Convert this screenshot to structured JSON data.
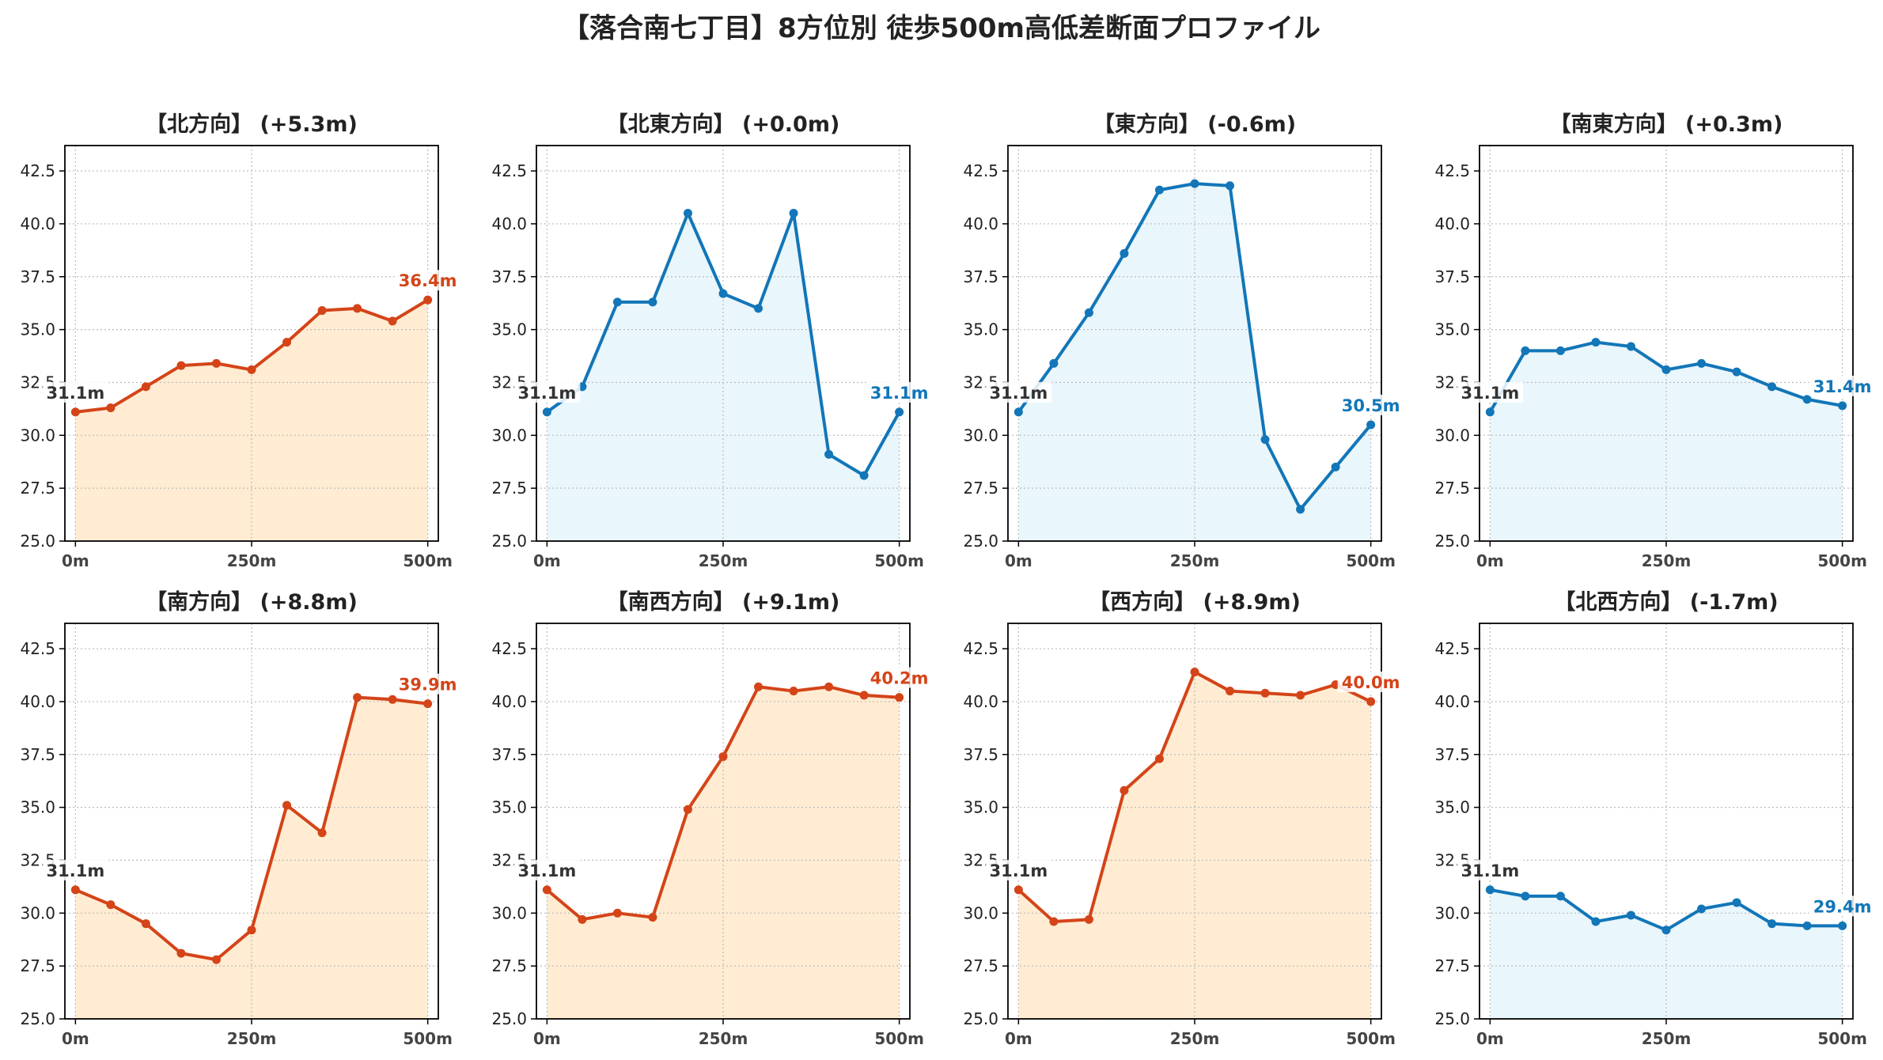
{
  "suptitle": "【落合南七丁目】8方位別 徒歩500m高低差断面プロファイル",
  "colors": {
    "up_line": "#d44418",
    "up_fill": "#ffecd2",
    "down_line": "#1276b8",
    "down_fill": "#e9f6fb",
    "start_label": "#333333"
  },
  "axes_common": {
    "ylim": [
      25.0,
      43.7
    ],
    "xlim": [
      -15,
      515
    ],
    "yticks": [
      "25.0",
      "27.5",
      "30.0",
      "32.5",
      "35.0",
      "37.5",
      "40.0",
      "42.5"
    ],
    "xticks": [
      "0m",
      "250m",
      "500m"
    ],
    "grid": true
  },
  "chart_data": [
    {
      "type": "area",
      "title": "【北方向】 (+5.3m)",
      "trend": "up",
      "x": [
        0,
        50,
        100,
        150,
        200,
        250,
        300,
        350,
        400,
        450,
        500
      ],
      "y": [
        31.1,
        31.3,
        32.3,
        33.3,
        33.4,
        33.1,
        34.4,
        35.9,
        36.0,
        35.4,
        36.4
      ],
      "start_label": "31.1m",
      "end_label": "36.4m"
    },
    {
      "type": "area",
      "title": "【北東方向】 (+0.0m)",
      "trend": "down",
      "x": [
        0,
        50,
        100,
        150,
        200,
        250,
        300,
        350,
        400,
        450,
        500
      ],
      "y": [
        31.1,
        32.3,
        36.3,
        36.3,
        40.5,
        36.7,
        36.0,
        40.5,
        29.1,
        28.1,
        31.1
      ],
      "start_label": "31.1m",
      "end_label": "31.1m"
    },
    {
      "type": "area",
      "title": "【東方向】 (-0.6m)",
      "trend": "down",
      "x": [
        0,
        50,
        100,
        150,
        200,
        250,
        300,
        350,
        400,
        450,
        500
      ],
      "y": [
        31.1,
        33.4,
        35.8,
        38.6,
        41.6,
        41.9,
        41.8,
        29.8,
        26.5,
        28.5,
        30.5
      ],
      "start_label": "31.1m",
      "end_label": "30.5m"
    },
    {
      "type": "area",
      "title": "【南東方向】 (+0.3m)",
      "trend": "down",
      "x": [
        0,
        50,
        100,
        150,
        200,
        250,
        300,
        350,
        400,
        450,
        500
      ],
      "y": [
        31.1,
        34.0,
        34.0,
        34.4,
        34.2,
        33.1,
        33.4,
        33.0,
        32.3,
        31.7,
        31.4
      ],
      "start_label": "31.1m",
      "end_label": "31.4m"
    },
    {
      "type": "area",
      "title": "【南方向】 (+8.8m)",
      "trend": "up",
      "x": [
        0,
        50,
        100,
        150,
        200,
        250,
        300,
        350,
        400,
        450,
        500
      ],
      "y": [
        31.1,
        30.4,
        29.5,
        28.1,
        27.8,
        29.2,
        35.1,
        33.8,
        40.2,
        40.1,
        39.9
      ],
      "start_label": "31.1m",
      "end_label": "39.9m"
    },
    {
      "type": "area",
      "title": "【南西方向】 (+9.1m)",
      "trend": "up",
      "x": [
        0,
        50,
        100,
        150,
        200,
        250,
        300,
        350,
        400,
        450,
        500
      ],
      "y": [
        31.1,
        29.7,
        30.0,
        29.8,
        34.9,
        37.4,
        40.7,
        40.5,
        40.7,
        40.3,
        40.2
      ],
      "start_label": "31.1m",
      "end_label": "40.2m"
    },
    {
      "type": "area",
      "title": "【西方向】 (+8.9m)",
      "trend": "up",
      "x": [
        0,
        50,
        100,
        150,
        200,
        250,
        300,
        350,
        400,
        450,
        500
      ],
      "y": [
        31.1,
        29.6,
        29.7,
        35.8,
        37.3,
        41.4,
        40.5,
        40.4,
        40.3,
        40.8,
        40.0
      ],
      "start_label": "31.1m",
      "end_label": "40.0m"
    },
    {
      "type": "area",
      "title": "【北西方向】 (-1.7m)",
      "trend": "down",
      "x": [
        0,
        50,
        100,
        150,
        200,
        250,
        300,
        350,
        400,
        450,
        500
      ],
      "y": [
        31.1,
        30.8,
        30.8,
        29.6,
        29.9,
        29.2,
        30.2,
        30.5,
        29.5,
        29.4,
        29.4
      ],
      "start_label": "31.1m",
      "end_label": "29.4m"
    }
  ]
}
